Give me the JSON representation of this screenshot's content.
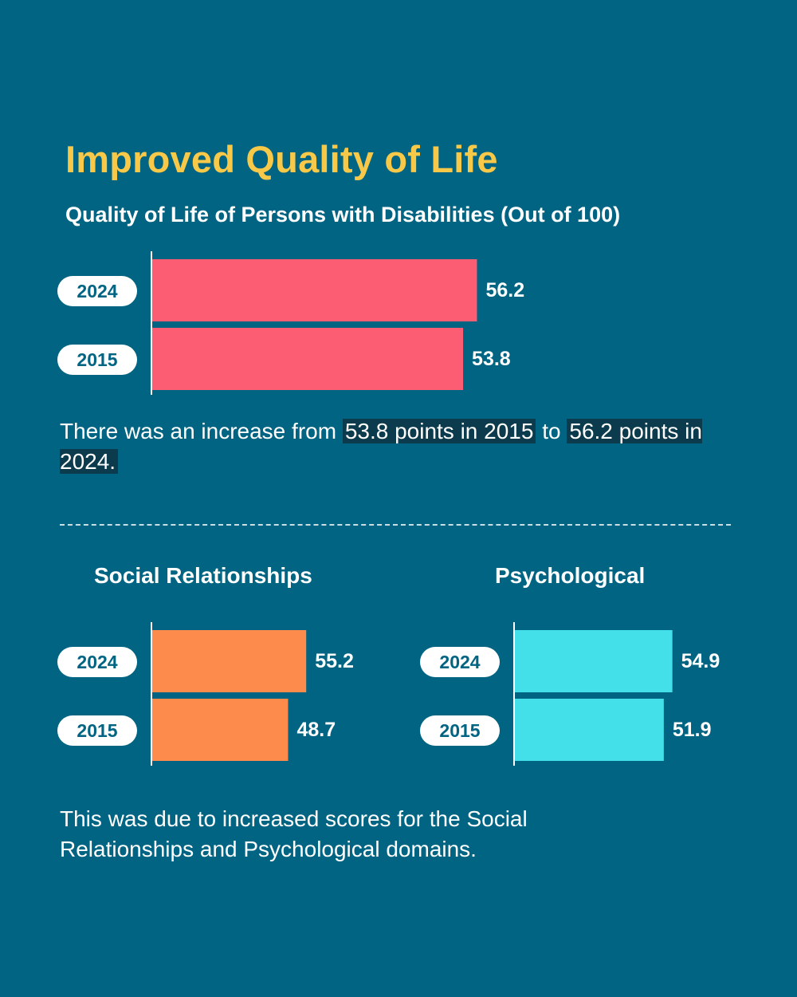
{
  "header": {
    "title": "Improved Quality of Life",
    "subtitle": "Quality of Life of Persons with Disabilities (Out of 100)"
  },
  "caption1": {
    "part1": "There was an increase from ",
    "highlight1": "53.8 points in 2015",
    "part2": " to ",
    "highlight2": "56.2 points in 2024."
  },
  "caption2": {
    "text": "This was due to increased scores for the Social Relationships and Psychological domains."
  },
  "colors": {
    "background": "#006482",
    "title": "#f8c848",
    "overall_bar": "#fd5d72",
    "social_bar": "#fd8c4c",
    "psych_bar": "#44e0ea",
    "highlight": "#0b3b4c"
  },
  "chart_data": [
    {
      "type": "bar",
      "orientation": "horizontal",
      "title": "Quality of Life of Persons with Disabilities (Out of 100)",
      "categories": [
        "2024",
        "2015"
      ],
      "values": [
        56.2,
        53.8
      ],
      "xlim": [
        0,
        100
      ],
      "color": "#fd5d72"
    },
    {
      "type": "bar",
      "orientation": "horizontal",
      "title": "Social Relationships",
      "categories": [
        "2024",
        "2015"
      ],
      "values": [
        55.2,
        48.7
      ],
      "xlim": [
        0,
        100
      ],
      "color": "#fd8c4c"
    },
    {
      "type": "bar",
      "orientation": "horizontal",
      "title": "Psychological",
      "categories": [
        "2024",
        "2015"
      ],
      "values": [
        54.9,
        51.9
      ],
      "xlim": [
        0,
        100
      ],
      "color": "#44e0ea"
    }
  ]
}
